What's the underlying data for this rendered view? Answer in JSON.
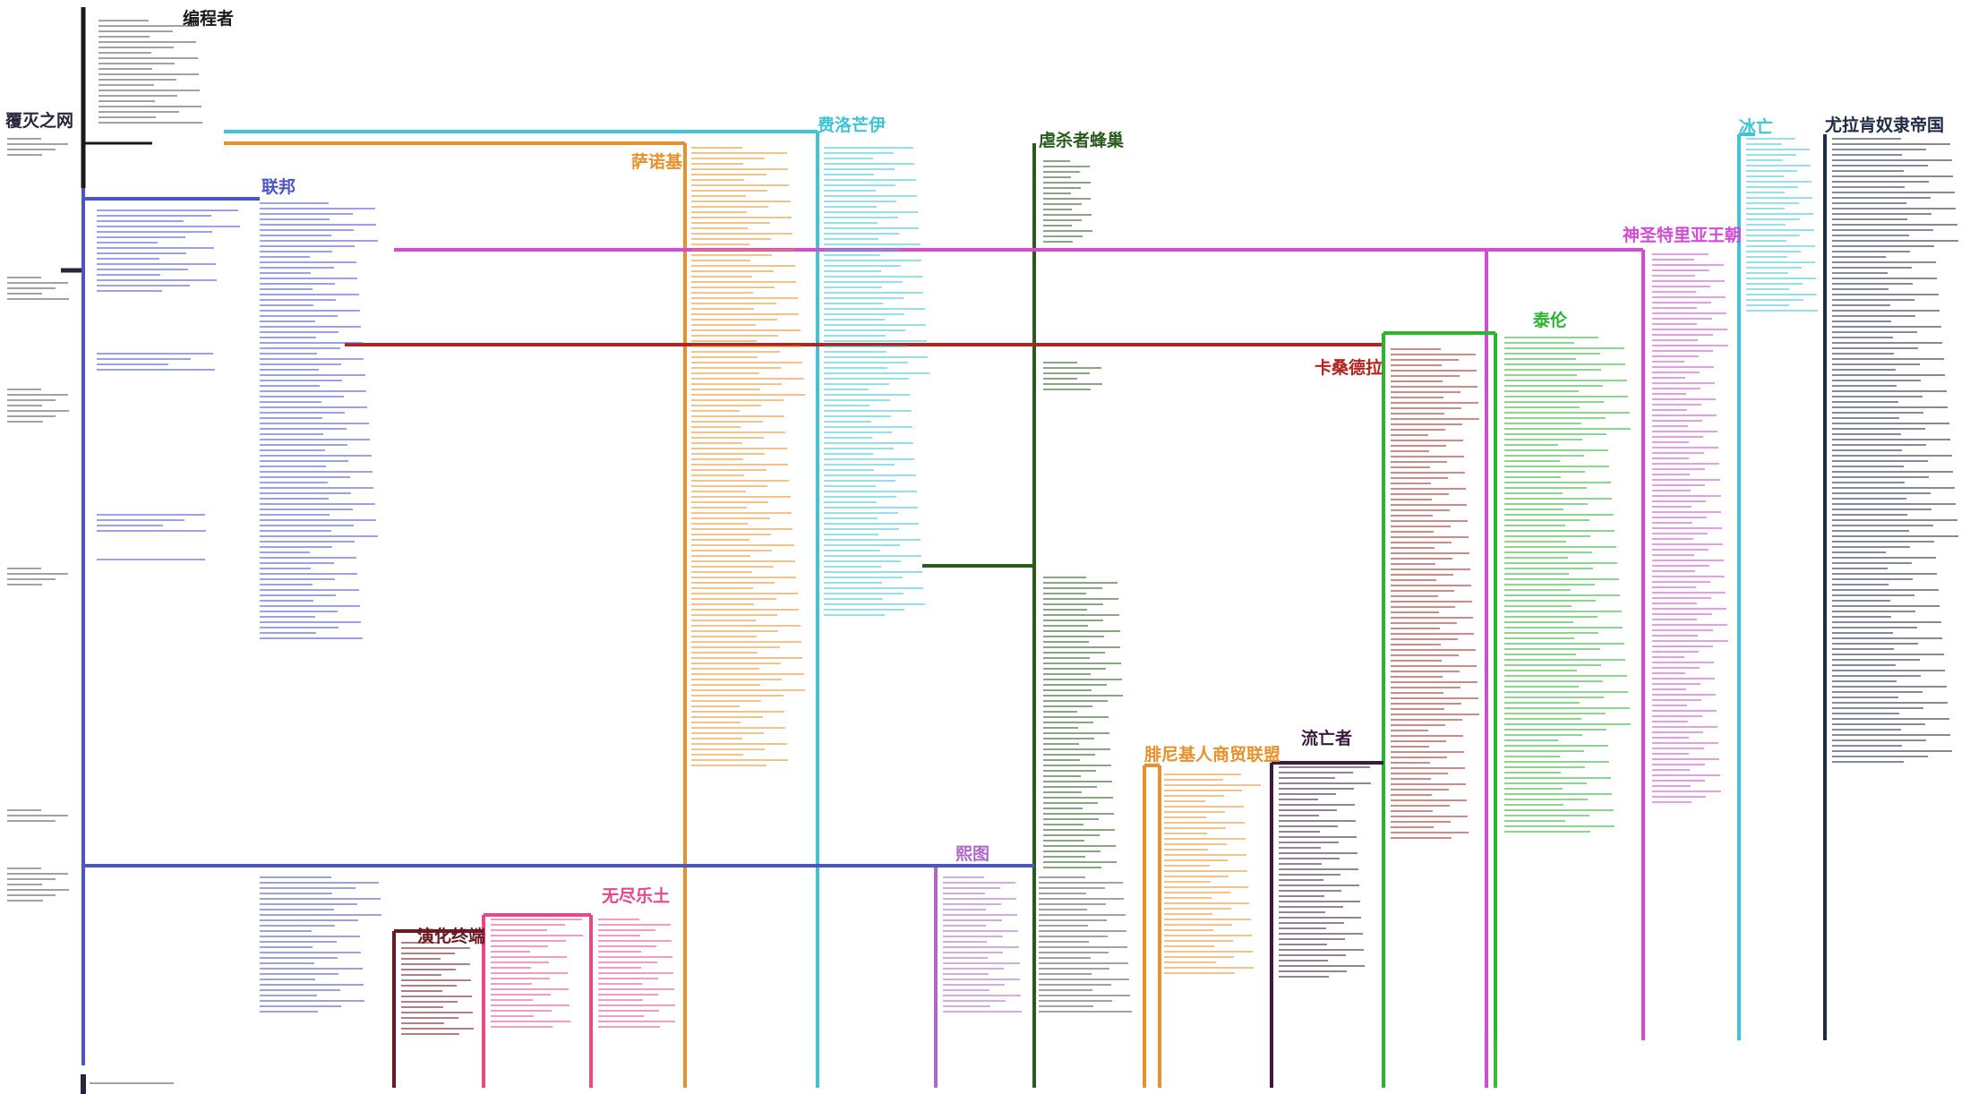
{
  "title": "",
  "timelines": [
    {
      "id": "fuzhanzhe",
      "label": "覆灭之网",
      "color": "#26263a"
    },
    {
      "id": "bianchengzhe",
      "label": "编程者",
      "color": "#1a1a1a"
    },
    {
      "id": "lianbang",
      "label": "联邦",
      "color": "#4a56c8"
    },
    {
      "id": "sanuoji",
      "label": "萨诺基",
      "color": "#e8902a"
    },
    {
      "id": "feiluomangyi",
      "label": "费洛芒伊",
      "color": "#3ec4d6"
    },
    {
      "id": "nueshazhe",
      "label": "虐杀者蜂巢",
      "color": "#2a5b1e"
    },
    {
      "id": "kasangdela",
      "label": "卡桑德拉",
      "color": "#b3241d"
    },
    {
      "id": "tailun",
      "label": "泰伦",
      "color": "#2bb52f"
    },
    {
      "id": "shensheng",
      "label": "神圣特里亚王朝",
      "color": "#d44ad6"
    },
    {
      "id": "bingwang",
      "label": "冰亡",
      "color": "#3ec4d6"
    },
    {
      "id": "youla",
      "label": "尤拉肯奴隶帝国",
      "color": "#1f2a44"
    },
    {
      "id": "liuwangzhe",
      "label": "流亡者",
      "color": "#3a1b3c"
    },
    {
      "id": "feiniji",
      "label": "腓尼基人商贸联盟",
      "color": "#e8902a"
    },
    {
      "id": "xitu",
      "label": "熙图",
      "color": "#b066c8"
    },
    {
      "id": "wujin",
      "label": "无尽乐土",
      "color": "#e6488a"
    },
    {
      "id": "yanhua",
      "label": "演化终端",
      "color": "#6b1a22"
    }
  ]
}
